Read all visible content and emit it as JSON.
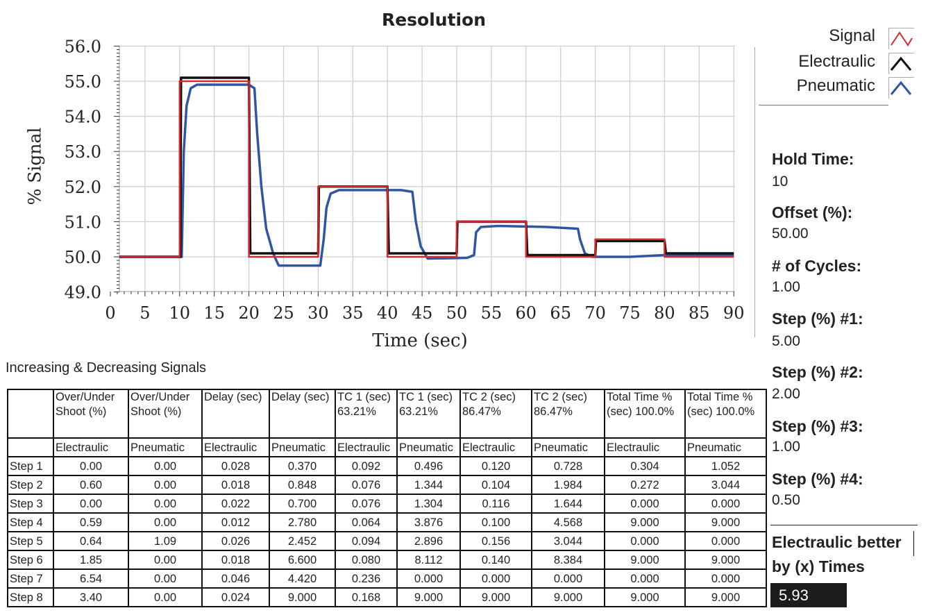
{
  "chart_data": {
    "type": "line",
    "title": "Resolution",
    "xlabel": "Time (sec)",
    "ylabel": "% Signal",
    "xlim": [
      0,
      90
    ],
    "ylim": [
      49,
      56
    ],
    "xticks": [
      "0",
      "5",
      "10",
      "15",
      "20",
      "25",
      "30",
      "35",
      "40",
      "45",
      "50",
      "55",
      "60",
      "65",
      "70",
      "75",
      "80",
      "85",
      "90"
    ],
    "yticks": [
      "49.0",
      "50.0",
      "51.0",
      "52.0",
      "53.0",
      "54.0",
      "55.0",
      "56.0"
    ],
    "grid": true,
    "legend_position": "top-right",
    "series": [
      {
        "name": "Signal",
        "color": "#d9272e",
        "points": [
          [
            1.3,
            50
          ],
          [
            10,
            50
          ],
          [
            10,
            55
          ],
          [
            20,
            55
          ],
          [
            20,
            50
          ],
          [
            30,
            50
          ],
          [
            30,
            52
          ],
          [
            40,
            52
          ],
          [
            40,
            50
          ],
          [
            50,
            50
          ],
          [
            50,
            51
          ],
          [
            60,
            51
          ],
          [
            60,
            50
          ],
          [
            70,
            50
          ],
          [
            70,
            50.5
          ],
          [
            80,
            50.5
          ],
          [
            80,
            50
          ],
          [
            90,
            50
          ]
        ]
      },
      {
        "name": "Electraulic",
        "color": "#111111",
        "points": [
          [
            1.3,
            50
          ],
          [
            10.1,
            50
          ],
          [
            10.2,
            55.1
          ],
          [
            20,
            55.1
          ],
          [
            20.2,
            50.1
          ],
          [
            30,
            50.1
          ],
          [
            30.1,
            52
          ],
          [
            40,
            52
          ],
          [
            40.2,
            50.1
          ],
          [
            50,
            50.1
          ],
          [
            50.1,
            51
          ],
          [
            60,
            51
          ],
          [
            60.2,
            50.05
          ],
          [
            70,
            50.05
          ],
          [
            70.1,
            50.45
          ],
          [
            80,
            50.45
          ],
          [
            80.2,
            50.1
          ],
          [
            90,
            50.1
          ]
        ]
      },
      {
        "name": "Pneumatic",
        "color": "#2f55a4",
        "points": [
          [
            1.3,
            50
          ],
          [
            10.3,
            50
          ],
          [
            10.6,
            53
          ],
          [
            11,
            54.3
          ],
          [
            11.6,
            54.8
          ],
          [
            12.5,
            54.9
          ],
          [
            20,
            54.9
          ],
          [
            20.8,
            54.8
          ],
          [
            21.2,
            53.5
          ],
          [
            21.8,
            52
          ],
          [
            22.5,
            50.8
          ],
          [
            23.5,
            50.1
          ],
          [
            24.3,
            49.75
          ],
          [
            30.3,
            49.75
          ],
          [
            30.8,
            50.5
          ],
          [
            31.2,
            51.4
          ],
          [
            31.8,
            51.8
          ],
          [
            33,
            51.9
          ],
          [
            42,
            51.9
          ],
          [
            43.6,
            51.85
          ],
          [
            44.1,
            51
          ],
          [
            44.8,
            50.3
          ],
          [
            45.8,
            49.95
          ],
          [
            51.5,
            49.97
          ],
          [
            52.5,
            50.05
          ],
          [
            52.8,
            50.7
          ],
          [
            53.5,
            50.85
          ],
          [
            56,
            50.88
          ],
          [
            63,
            50.85
          ],
          [
            67.5,
            50.8
          ],
          [
            67.8,
            50.5
          ],
          [
            68.5,
            50.1
          ],
          [
            69.5,
            50
          ],
          [
            75,
            50
          ],
          [
            80,
            50.05
          ],
          [
            90,
            50.05
          ]
        ]
      }
    ]
  },
  "table": {
    "caption": "Increasing & Decreasing Signals",
    "headers": [
      "",
      "Over/Under Shoot (%)",
      "Over/Under Shoot (%)",
      "Delay (sec)",
      "Delay (sec)",
      "TC 1 (sec) 63.21%",
      "TC 1 (sec) 63.21%",
      "TC 2 (sec) 86.47%",
      "TC 2 (sec) 86.47%",
      "Total Time % (sec) 100.0%",
      "Total Time % (sec) 100.0%"
    ],
    "subheaders": [
      "",
      "Electraulic",
      "Pneumatic",
      "Electraulic",
      "Pneumatic",
      "Electraulic",
      "Pneumatic",
      "Electraulic",
      "Pneumatic",
      "Electraulic",
      "Pneumatic"
    ],
    "rows": [
      [
        "Step 1",
        "0.00",
        "0.00",
        "0.028",
        "0.370",
        "0.092",
        "0.496",
        "0.120",
        "0.728",
        "0.304",
        "1.052"
      ],
      [
        "Step 2",
        "0.60",
        "0.00",
        "0.018",
        "0.848",
        "0.076",
        "1.344",
        "0.104",
        "1.984",
        "0.272",
        "3.044"
      ],
      [
        "Step 3",
        "0.00",
        "0.00",
        "0.022",
        "0.700",
        "0.076",
        "1.304",
        "0.116",
        "1.644",
        "0.000",
        "0.000"
      ],
      [
        "Step 4",
        "0.59",
        "0.00",
        "0.012",
        "2.780",
        "0.064",
        "3.876",
        "0.100",
        "4.568",
        "9.000",
        "9.000"
      ],
      [
        "Step 5",
        "0.64",
        "1.09",
        "0.026",
        "2.452",
        "0.094",
        "2.896",
        "0.156",
        "3.044",
        "0.000",
        "0.000"
      ],
      [
        "Step 6",
        "1.85",
        "0.00",
        "0.018",
        "6.600",
        "0.080",
        "8.112",
        "0.140",
        "8.384",
        "9.000",
        "9.000"
      ],
      [
        "Step 7",
        "6.54",
        "0.00",
        "0.046",
        "4.420",
        "0.236",
        "0.000",
        "0.000",
        "0.000",
        "0.000",
        "0.000"
      ],
      [
        "Step 8",
        "3.40",
        "0.00",
        "0.024",
        "9.000",
        "0.168",
        "9.000",
        "9.000",
        "9.000",
        "9.000",
        "9.000"
      ]
    ]
  },
  "params": [
    {
      "label": "Hold Time:",
      "value": "10"
    },
    {
      "label": "Offset (%):",
      "value": "50.00"
    },
    {
      "label": "# of Cycles:",
      "value": "1.00"
    },
    {
      "label": "Step (%) #1:",
      "value": "5.00"
    },
    {
      "label": "Step (%) #2:",
      "value": "2.00"
    },
    {
      "label": "Step (%) #3:",
      "value": "1.00"
    },
    {
      "label": "Step (%) #4:",
      "value": "0.50"
    }
  ],
  "result": {
    "label_line1": "Electraulic better",
    "label_line2": "by (x) Times",
    "value": "5.93"
  }
}
